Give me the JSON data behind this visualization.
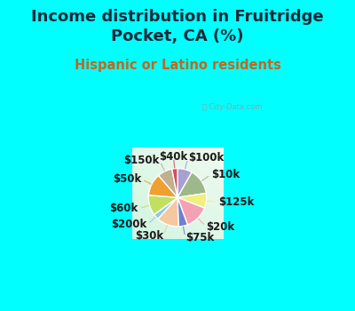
{
  "title": "Income distribution in Fruitridge\nPocket, CA (%)",
  "subtitle": "Hispanic or Latino residents",
  "background_color": "#00FFFF",
  "labels": [
    "$100k",
    "$10k",
    "$125k",
    "$20k",
    "$75k",
    "$30k",
    "$200k",
    "$60k",
    "$50k",
    "$150k",
    "$40k"
  ],
  "sizes": [
    8,
    14,
    8,
    13,
    5,
    12,
    3,
    11,
    12,
    8,
    3
  ],
  "colors": [
    "#a89fd4",
    "#9db88a",
    "#f0f07a",
    "#f4a0b5",
    "#7080cc",
    "#f5c8a0",
    "#90c8e0",
    "#c0e060",
    "#f0a030",
    "#c0b090",
    "#d05060"
  ],
  "title_fontsize": 13,
  "subtitle_fontsize": 10.5,
  "title_color": "#1a2a3a",
  "subtitle_color": "#c06820",
  "label_fontsize": 8.5
}
